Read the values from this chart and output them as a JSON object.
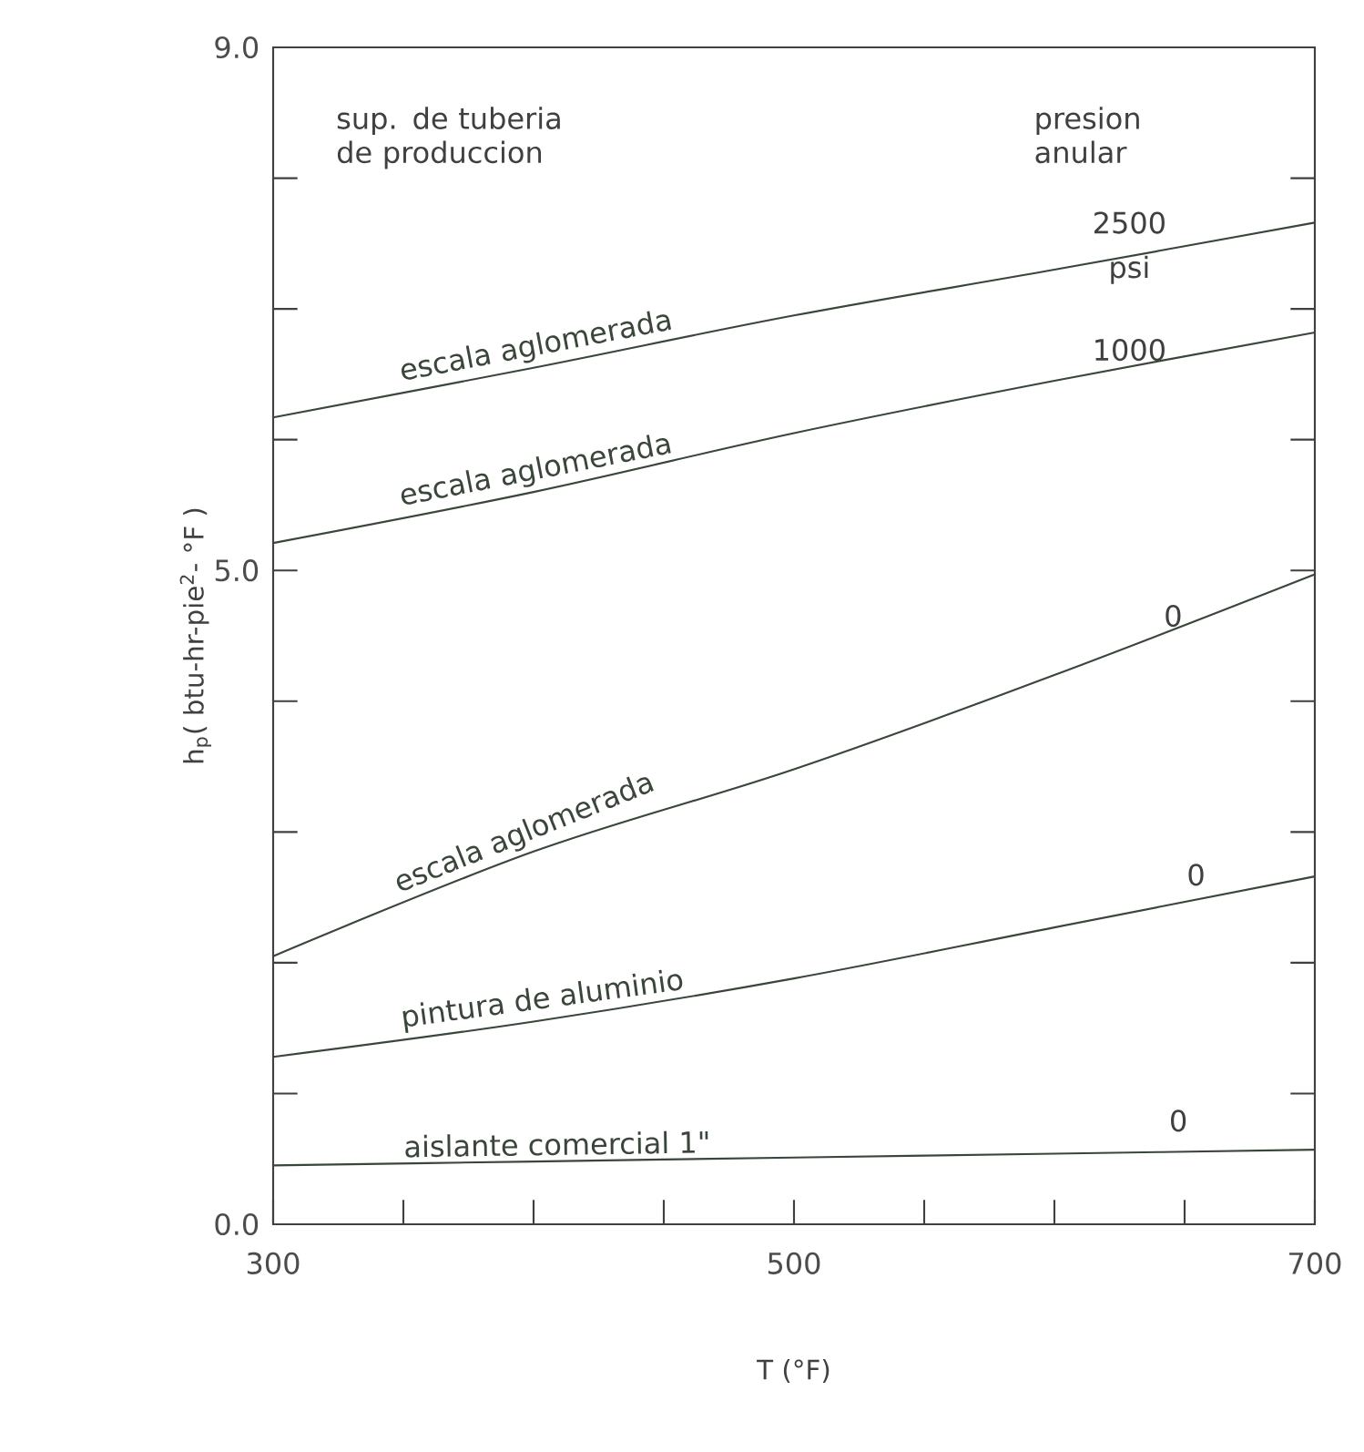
{
  "chart_data": {
    "type": "line",
    "xlabel": "T (°F)",
    "ylabel": "h$_{p}$( btu-hr-pie$^{2}$- °F )",
    "x": [
      300,
      400,
      500,
      600,
      700
    ],
    "series": [
      {
        "name": "escala aglomerada",
        "color": "#3b463b",
        "values": [
          6.17,
          6.55,
          6.95,
          7.3,
          7.66
        ]
      },
      {
        "name": "escala aglomerada",
        "color": "#3b463b",
        "values": [
          5.21,
          5.6,
          6.05,
          6.45,
          6.82
        ]
      },
      {
        "name": "escala aglomerada",
        "color": "#3b463b",
        "values": [
          2.05,
          2.85,
          3.48,
          4.2,
          4.97
        ]
      },
      {
        "name": "pintura de aluminio",
        "color": "#3b463b",
        "values": [
          1.28,
          1.55,
          1.88,
          2.27,
          2.66
        ]
      },
      {
        "name": "aislante comercial 1\"",
        "color": "#3b463b",
        "values": [
          0.45,
          0.48,
          0.51,
          0.54,
          0.57
        ]
      }
    ],
    "line_style": "solid",
    "xlim": [
      300,
      700
    ],
    "ylim": [
      0,
      9
    ],
    "xticks": [
      300,
      {
        "value": 350,
        "label": null
      },
      {
        "value": 400,
        "label": null
      },
      {
        "value": 450,
        "label": null
      },
      500,
      {
        "value": 550,
        "label": null
      },
      {
        "value": 600,
        "label": null
      },
      {
        "value": 650,
        "label": null
      },
      700
    ],
    "yticks": [
      {
        "value": 0,
        "label": "0.0"
      },
      {
        "value": 1,
        "label": null
      },
      {
        "value": 2,
        "label": null
      },
      {
        "value": 3,
        "label": null
      },
      {
        "value": 4,
        "label": null
      },
      {
        "value": 5,
        "label": "5.0"
      },
      {
        "value": 6,
        "label": null
      },
      {
        "value": 7,
        "label": null
      },
      {
        "value": 8,
        "label": null
      },
      {
        "value": 9,
        "label": "9.0"
      }
    ],
    "annotations": [
      "sup. de tuberia de produccion",
      "presion anular",
      "2500",
      "psi",
      "1000",
      "0",
      "0",
      "0"
    ]
  }
}
